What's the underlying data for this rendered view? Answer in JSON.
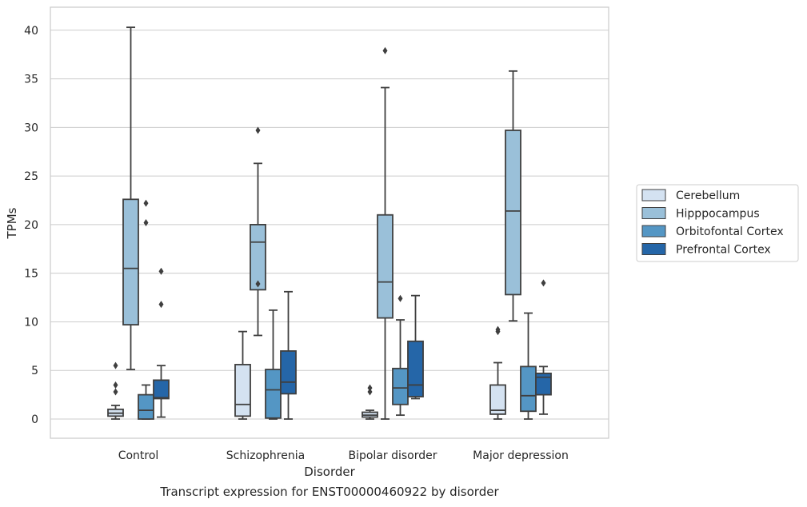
{
  "chart_data": {
    "type": "box",
    "categories": [
      "Control",
      "Schizophrenia",
      "Bipolar disorder",
      "Major depression"
    ],
    "xlabel": "Disorder",
    "ylabel": "TPMs",
    "ylim": [
      -2,
      42
    ],
    "yticks": [
      0,
      5,
      10,
      15,
      20,
      25,
      30,
      35,
      40
    ],
    "grid": true,
    "legend_position": "right",
    "series": [
      {
        "name": "Cerebellum",
        "color": "#d4e2f1",
        "boxes": [
          {
            "whisker_low": 0.0,
            "q1": 0.3,
            "median": 0.6,
            "q3": 1.0,
            "whisker_high": 1.4,
            "outliers": [
              2.8,
              3.5,
              5.5
            ]
          },
          {
            "whisker_low": 0.0,
            "q1": 0.3,
            "median": 1.5,
            "q3": 5.6,
            "whisker_high": 9.0,
            "outliers": []
          },
          {
            "whisker_low": 0.0,
            "q1": 0.2,
            "median": 0.4,
            "q3": 0.7,
            "whisker_high": 0.9,
            "outliers": [
              2.8,
              3.2
            ]
          },
          {
            "whisker_low": 0.0,
            "q1": 0.5,
            "median": 0.9,
            "q3": 3.5,
            "whisker_high": 5.8,
            "outliers": [
              9.0,
              9.2
            ]
          }
        ]
      },
      {
        "name": "Hipppocampus",
        "color": "#9ac0d9",
        "boxes": [
          {
            "whisker_low": 5.1,
            "q1": 9.7,
            "median": 15.5,
            "q3": 22.6,
            "whisker_high": 40.3,
            "outliers": []
          },
          {
            "whisker_low": 8.6,
            "q1": 13.3,
            "median": 18.2,
            "q3": 20.0,
            "whisker_high": 26.3,
            "outliers": [
              13.9,
              29.7
            ]
          },
          {
            "whisker_low": 0.0,
            "q1": 10.4,
            "median": 14.1,
            "q3": 21.0,
            "whisker_high": 34.1,
            "outliers": [
              37.9
            ]
          },
          {
            "whisker_low": 10.1,
            "q1": 12.8,
            "median": 21.4,
            "q3": 29.7,
            "whisker_high": 35.8,
            "outliers": []
          }
        ]
      },
      {
        "name": "Orbitofontal Cortex",
        "color": "#5496c4",
        "boxes": [
          {
            "whisker_low": 0.0,
            "q1": 0.0,
            "median": 0.9,
            "q3": 2.5,
            "whisker_high": 3.5,
            "outliers": [
              20.2,
              22.2
            ]
          },
          {
            "whisker_low": 0.0,
            "q1": 0.1,
            "median": 3.0,
            "q3": 5.1,
            "whisker_high": 11.2,
            "outliers": []
          },
          {
            "whisker_low": 0.4,
            "q1": 1.5,
            "median": 3.2,
            "q3": 5.2,
            "whisker_high": 10.2,
            "outliers": [
              12.4
            ]
          },
          {
            "whisker_low": 0.0,
            "q1": 0.8,
            "median": 2.4,
            "q3": 5.4,
            "whisker_high": 10.9,
            "outliers": []
          }
        ]
      },
      {
        "name": "Prefrontal Cortex",
        "color": "#2566a8",
        "boxes": [
          {
            "whisker_low": 0.2,
            "q1": 2.1,
            "median": 2.2,
            "q3": 4.0,
            "whisker_high": 5.5,
            "outliers": [
              11.8,
              15.2
            ]
          },
          {
            "whisker_low": 0.0,
            "q1": 2.6,
            "median": 3.8,
            "q3": 7.0,
            "whisker_high": 13.1,
            "outliers": []
          },
          {
            "whisker_low": 2.1,
            "q1": 2.3,
            "median": 3.5,
            "q3": 8.0,
            "whisker_high": 12.7,
            "outliers": []
          },
          {
            "whisker_low": 0.5,
            "q1": 2.5,
            "median": 4.3,
            "q3": 4.7,
            "whisker_high": 5.4,
            "outliers": [
              14.0
            ]
          }
        ]
      }
    ]
  },
  "caption": "Transcript expression for ENST00000460922 by disorder"
}
